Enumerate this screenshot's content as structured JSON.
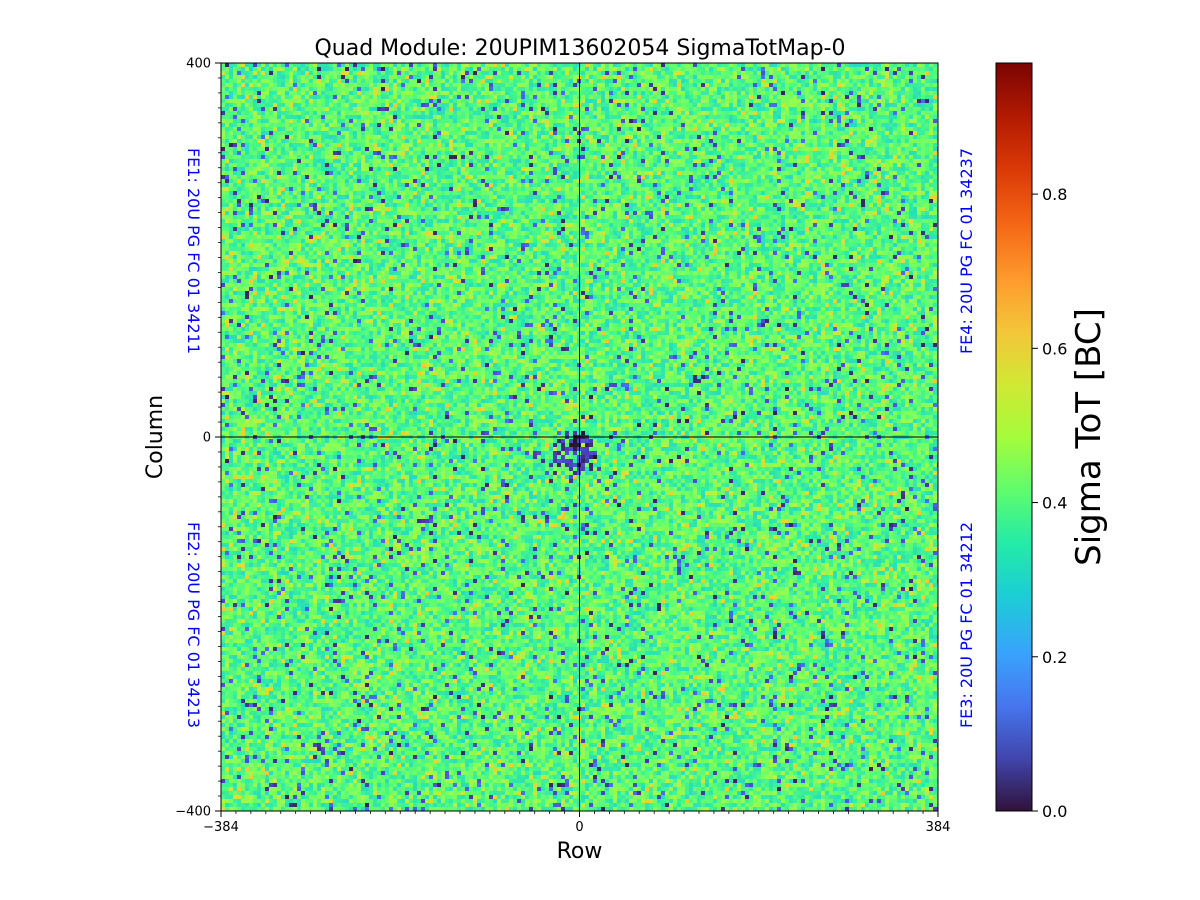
{
  "chart_data": {
    "type": "heatmap",
    "title": "Quad Module: 20UPIM13602054 SigmaTotMap-0",
    "xlabel": "Row",
    "ylabel": "Column",
    "xlim": [
      -384,
      384
    ],
    "ylim": [
      -400,
      400
    ],
    "x_ticks": [
      "−384",
      "0",
      "384"
    ],
    "y_ticks": [
      "400",
      "0",
      "−400"
    ],
    "x_tick_values": [
      -384,
      0,
      384
    ],
    "y_tick_values": [
      400,
      0,
      -400
    ],
    "colormap": "turbo",
    "colorbar": {
      "label": "Sigma ToT [BC]",
      "range": [
        0.0,
        0.97
      ],
      "ticks": [
        "0.0",
        "0.2",
        "0.4",
        "0.6",
        "0.8"
      ],
      "tick_values": [
        0.0,
        0.2,
        0.4,
        0.6,
        0.8
      ]
    },
    "typical_value_range": [
      0.3,
      0.5
    ],
    "dominant_value": 0.4,
    "low_value_region_value": 0.05,
    "low_value_region_location": "near center (0,0), lower-left of origin",
    "quadrants": [
      {
        "label": "FE1: 20U PG FC 01 34211",
        "position": "top-left",
        "color": "#0000ff"
      },
      {
        "label": "FE4: 20U PG FC 01 34237",
        "position": "top-right",
        "color": "#0000ff"
      },
      {
        "label": "FE2: 20U PG FC 01 34213",
        "position": "bottom-left",
        "color": "#0000ff"
      },
      {
        "label": "FE3: 20U PG FC 01 34212",
        "position": "bottom-right",
        "color": "#0000ff"
      }
    ],
    "grid": false,
    "divider_lines": {
      "x": 0,
      "y": 0
    }
  }
}
